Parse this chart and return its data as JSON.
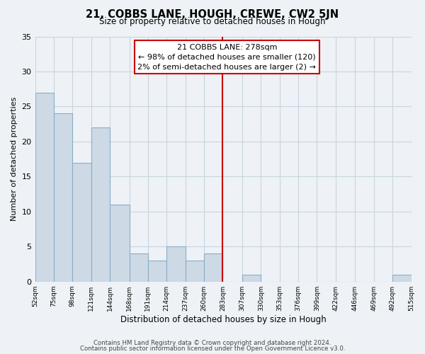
{
  "title": "21, COBBS LANE, HOUGH, CREWE, CW2 5JN",
  "subtitle": "Size of property relative to detached houses in Hough",
  "xlabel": "Distribution of detached houses by size in Hough",
  "ylabel": "Number of detached properties",
  "bar_edges": [
    52,
    75,
    98,
    121,
    144,
    168,
    191,
    214,
    237,
    260,
    283,
    307,
    330,
    353,
    376,
    399,
    422,
    446,
    469,
    492,
    515
  ],
  "bar_heights": [
    27,
    24,
    17,
    22,
    11,
    4,
    3,
    5,
    3,
    4,
    0,
    1,
    0,
    0,
    0,
    0,
    0,
    0,
    0,
    1
  ],
  "bar_color": "#cdd9e5",
  "bar_edge_color": "#8aaec8",
  "property_line_x": 283,
  "property_line_color": "#cc0000",
  "annotation_title": "21 COBBS LANE: 278sqm",
  "annotation_line1": "← 98% of detached houses are smaller (120)",
  "annotation_line2": "2% of semi-detached houses are larger (2) →",
  "annotation_box_color": "#ffffff",
  "annotation_box_edge": "#cc0000",
  "tick_labels": [
    "52sqm",
    "75sqm",
    "98sqm",
    "121sqm",
    "144sqm",
    "168sqm",
    "191sqm",
    "214sqm",
    "237sqm",
    "260sqm",
    "283sqm",
    "307sqm",
    "330sqm",
    "353sqm",
    "376sqm",
    "399sqm",
    "422sqm",
    "446sqm",
    "469sqm",
    "492sqm",
    "515sqm"
  ],
  "ylim": [
    0,
    35
  ],
  "yticks": [
    0,
    5,
    10,
    15,
    20,
    25,
    30,
    35
  ],
  "grid_color": "#c8d4e0",
  "background_color": "#eef2f6",
  "footer1": "Contains HM Land Registry data © Crown copyright and database right 2024.",
  "footer2": "Contains public sector information licensed under the Open Government Licence v3.0."
}
